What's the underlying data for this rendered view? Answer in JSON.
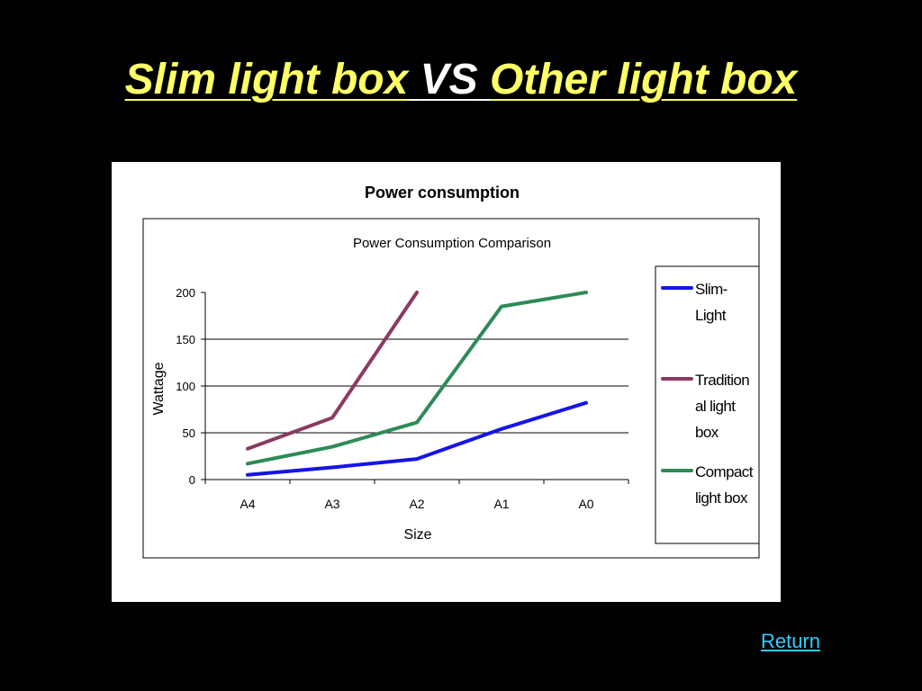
{
  "slide": {
    "title_part1": "Slim light box",
    "title_vs": "VS",
    "title_part2": "Other light box",
    "return_label": "Return"
  },
  "colors": {
    "background": "#000000",
    "title_yellow": "#ffff66",
    "title_white": "#ffffff",
    "link": "#33ccff"
  },
  "chart_data": {
    "type": "line",
    "header": "Power consumption",
    "title": "Power Consumption Comparison",
    "xlabel": "Size",
    "ylabel": "Wattage",
    "categories": [
      "A4",
      "A3",
      "A2",
      "A1",
      "A0"
    ],
    "ylim": [
      0,
      200
    ],
    "yticks": [
      0,
      50,
      100,
      150,
      200
    ],
    "grid": true,
    "legend_position": "right",
    "series": [
      {
        "name": "Slim-Light",
        "color": "#1414e6",
        "values": [
          5,
          13,
          22,
          54,
          82
        ]
      },
      {
        "name": "Traditional light box",
        "color": "#8b3a62",
        "values": [
          33,
          66,
          200,
          null,
          null
        ]
      },
      {
        "name": "Compact light box",
        "color": "#2e8b57",
        "values": [
          17,
          35,
          61,
          185,
          200
        ]
      }
    ],
    "legend_lines": [
      [
        "Slim-",
        "Light"
      ],
      [
        "Tradition",
        "al light",
        "box"
      ],
      [
        "Compact",
        "light box"
      ]
    ]
  }
}
